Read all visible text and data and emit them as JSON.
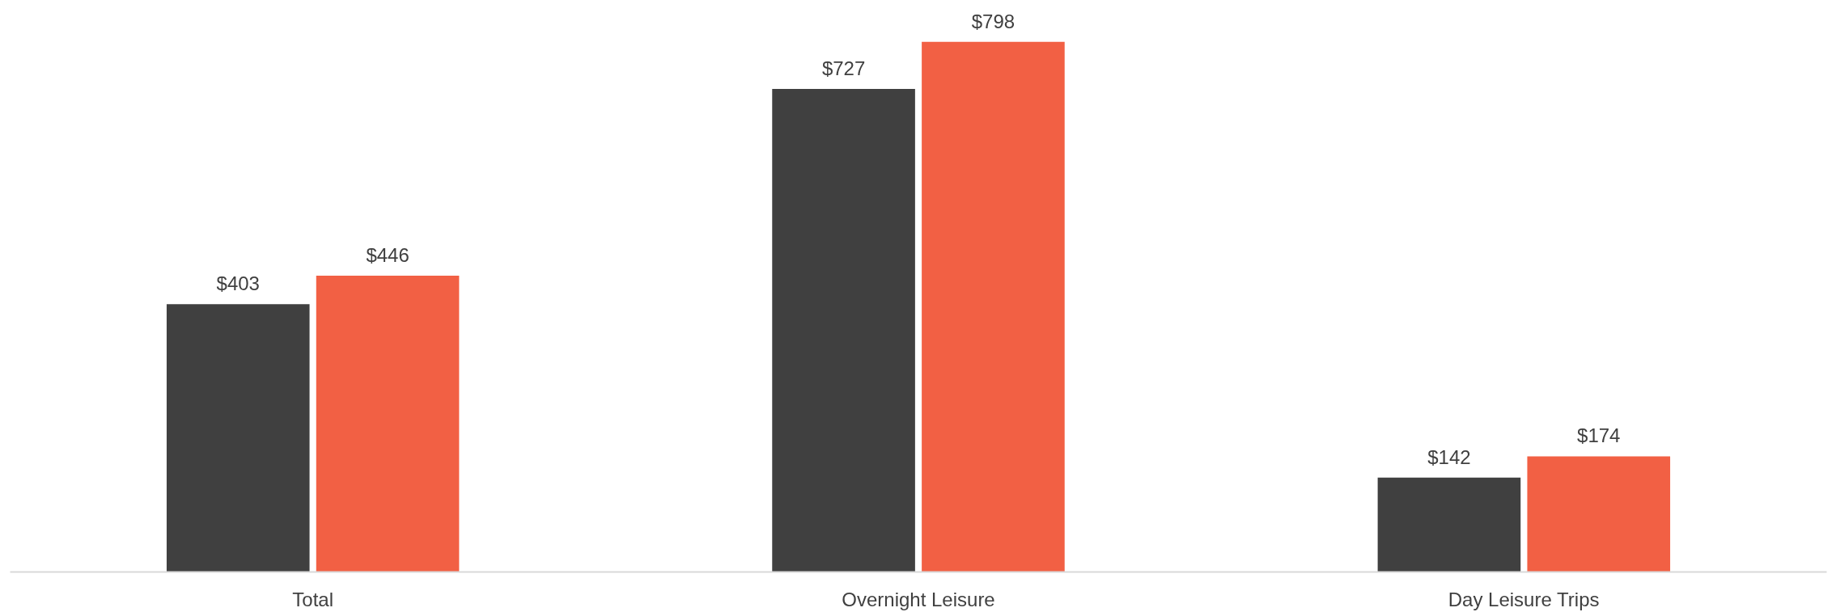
{
  "chart_data": {
    "type": "bar",
    "categories": [
      "Total",
      "Overnight Leisure",
      "Day Leisure Trips"
    ],
    "series": [
      {
        "color": "#404040",
        "values": [
          403,
          727,
          142
        ],
        "value_labels": [
          "$403",
          "$727",
          "$142"
        ]
      },
      {
        "color": "#f26044",
        "values": [
          446,
          798,
          174
        ],
        "value_labels": [
          "$446",
          "$798",
          "$174"
        ]
      }
    ],
    "grid": false
  }
}
